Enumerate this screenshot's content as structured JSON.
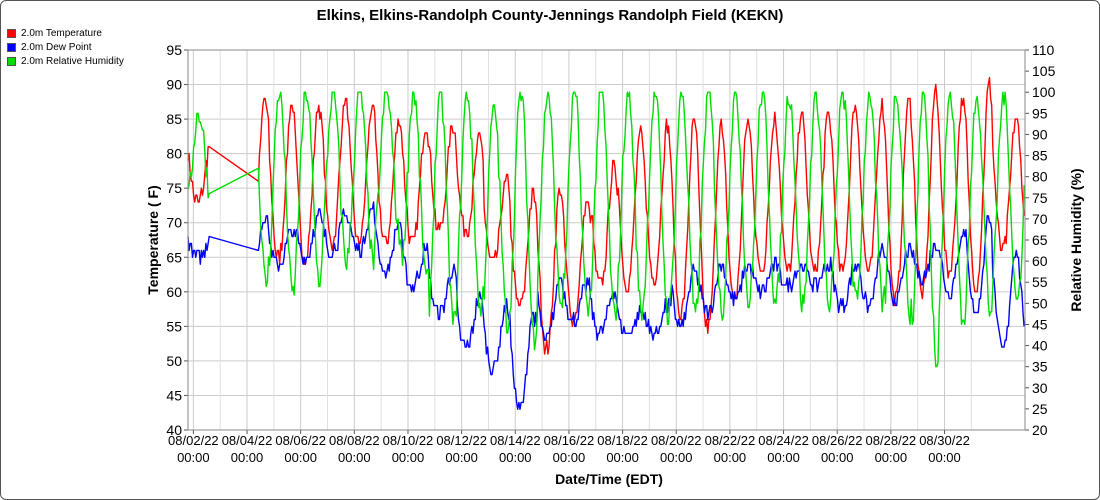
{
  "chart_data": {
    "type": "line",
    "title": "Elkins, Elkins-Randolph County-Jennings Randolph Field (KEKN)",
    "xlabel": "Date/Time (EDT)",
    "ylabel": "Temperature ( F)",
    "y2label": "Relative Humidity (%)",
    "ylim": [
      40,
      95
    ],
    "y2lim": [
      20,
      110
    ],
    "yticks": [
      40,
      45,
      50,
      55,
      60,
      65,
      70,
      75,
      80,
      85,
      90,
      95
    ],
    "y2ticks": [
      20,
      25,
      30,
      35,
      40,
      45,
      50,
      55,
      60,
      65,
      70,
      75,
      80,
      85,
      90,
      95,
      100,
      105,
      110
    ],
    "xlim_days": [
      "08/01/22 20:00",
      "09/01/22 00:00"
    ],
    "xticks": [
      {
        "date": "08/02/22",
        "time": "00:00"
      },
      {
        "date": "08/04/22",
        "time": "00:00"
      },
      {
        "date": "08/06/22",
        "time": "00:00"
      },
      {
        "date": "08/08/22",
        "time": "00:00"
      },
      {
        "date": "08/10/22",
        "time": "00:00"
      },
      {
        "date": "08/12/22",
        "time": "00:00"
      },
      {
        "date": "08/14/22",
        "time": "00:00"
      },
      {
        "date": "08/16/22",
        "time": "00:00"
      },
      {
        "date": "08/18/22",
        "time": "00:00"
      },
      {
        "date": "08/20/22",
        "time": "00:00"
      },
      {
        "date": "08/22/22",
        "time": "00:00"
      },
      {
        "date": "08/24/22",
        "time": "00:00"
      },
      {
        "date": "08/26/22",
        "time": "00:00"
      },
      {
        "date": "08/28/22",
        "time": "00:00"
      },
      {
        "date": "08/30/22",
        "time": "00:00"
      }
    ],
    "grid": true,
    "legend_position": "top-left",
    "series": [
      {
        "name": "2.0m Temperature",
        "color": "#ff0000",
        "axis": "left",
        "daily_max": [
          82,
          79,
          88,
          87,
          87,
          88,
          87,
          85,
          84,
          84,
          82,
          76,
          74,
          75,
          73,
          78,
          83,
          84,
          85,
          84,
          85,
          85,
          86,
          86,
          87,
          87,
          88,
          89,
          88,
          90,
          85
        ],
        "daily_min": [
          73,
          70,
          67,
          65,
          65,
          67,
          67,
          67,
          67,
          69,
          69,
          64,
          58,
          52,
          56,
          61,
          61,
          62,
          57,
          55,
          59,
          63,
          63,
          63,
          63,
          63,
          59,
          60,
          63,
          61,
          66
        ],
        "gaps": [
          [
            0.8,
            2.6
          ]
        ]
      },
      {
        "name": "2.0m Dew Point",
        "color": "#0000ff",
        "axis": "left",
        "daily_max": [
          68,
          66,
          71,
          69,
          71,
          71,
          72,
          70,
          66,
          63,
          59,
          58,
          57,
          62,
          61,
          60,
          57,
          58,
          63,
          64,
          64,
          64,
          64,
          64,
          64,
          66,
          66,
          67,
          68,
          71,
          66
        ],
        "daily_min": [
          65,
          63,
          64,
          64,
          65,
          66,
          66,
          63,
          61,
          57,
          52,
          49,
          43,
          53,
          56,
          54,
          54,
          54,
          55,
          57,
          59,
          60,
          61,
          61,
          58,
          58,
          59,
          62,
          60,
          57,
          52
        ],
        "gaps": [
          [
            0.8,
            2.6
          ]
        ]
      },
      {
        "name": "2.0m Relative Humidity",
        "color": "#00dd00",
        "axis": "right",
        "daily_max": [
          95,
          85,
          100,
          100,
          100,
          100,
          100,
          100,
          100,
          100,
          100,
          97,
          100,
          100,
          100,
          100,
          100,
          100,
          100,
          100,
          100,
          100,
          100,
          100,
          100,
          100,
          100,
          100,
          100,
          100,
          100
        ],
        "daily_min": [
          72,
          62,
          55,
          52,
          55,
          60,
          60,
          65,
          55,
          45,
          48,
          45,
          42,
          50,
          48,
          47,
          48,
          47,
          47,
          48,
          50,
          50,
          50,
          48,
          50,
          50,
          48,
          37,
          45,
          48,
          50
        ],
        "gaps": [
          [
            0.8,
            2.6
          ]
        ]
      }
    ]
  }
}
